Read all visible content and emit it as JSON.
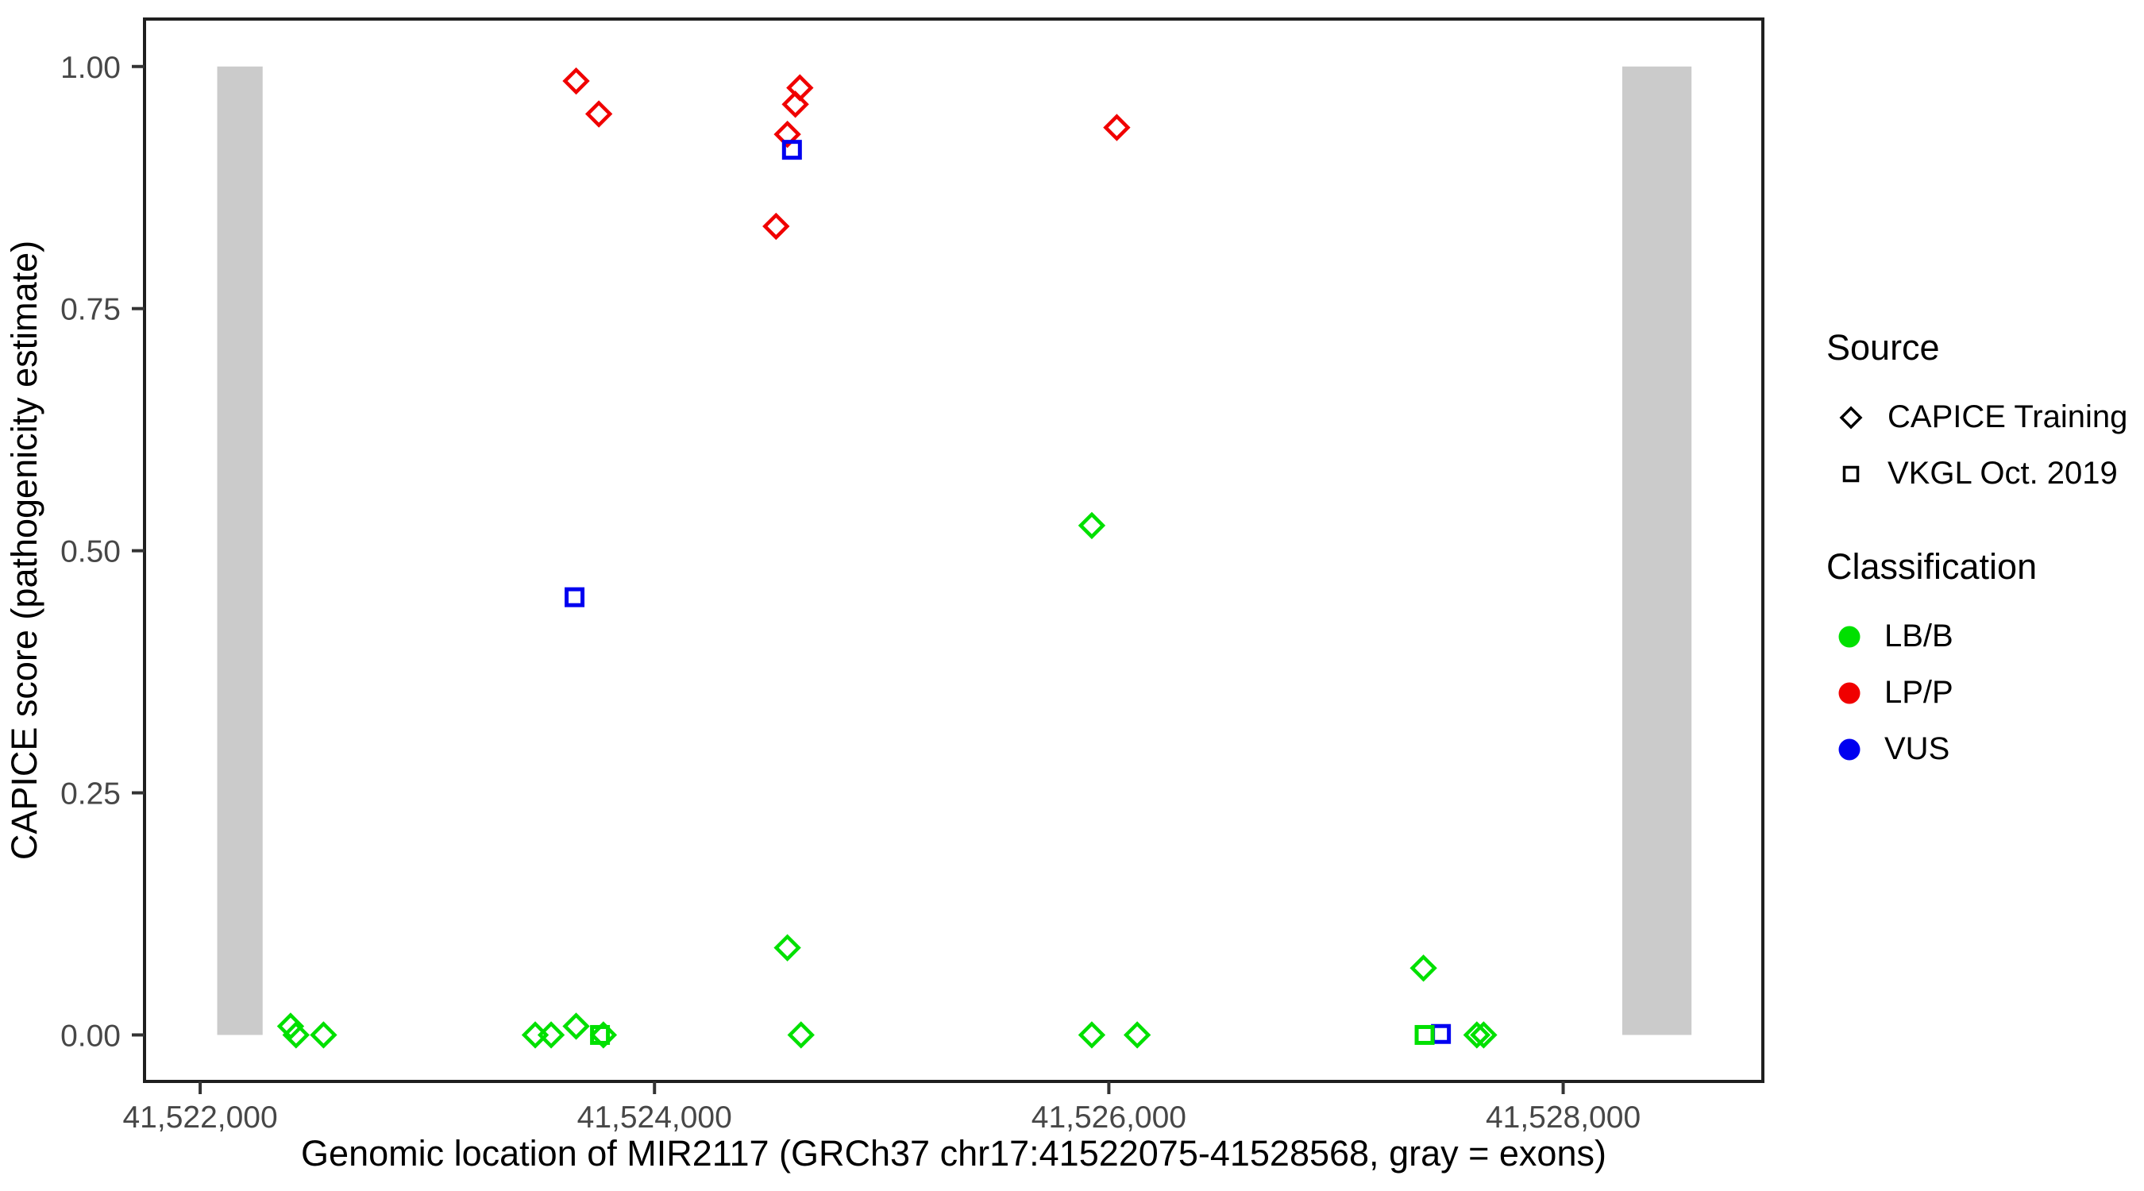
{
  "chart_data": {
    "type": "scatter",
    "title": "",
    "xlabel": "Genomic location of MIR2117 (GRCh37 chr17:41522075-41528568, gray = exons)",
    "ylabel": "CAPICE score (pathogenicity estimate)",
    "x_ticks": [
      41522000,
      41524000,
      41526000,
      41528000
    ],
    "x_tick_labels": [
      "41,522,000",
      "41,524,000",
      "41,526,000",
      "41,528,000"
    ],
    "y_ticks": [
      0,
      0.25,
      0.5,
      0.75,
      1
    ],
    "y_tick_labels": [
      "0.00",
      "0.25",
      "0.50",
      "0.75",
      "1.00"
    ],
    "xlim": [
      41521755,
      41528879
    ],
    "ylim": [
      -0.048,
      1.049
    ],
    "grid": false,
    "exon_color": "#CBCBCB",
    "exons": [
      {
        "start": 41522075,
        "end": 41522275
      },
      {
        "start": 41528260,
        "end": 41528565
      }
    ],
    "series": [
      {
        "name": "CAPICE Training / LP/P",
        "source": "CAPICE Training",
        "classification": "LP/P",
        "marker": "diamond",
        "color": "#F00000",
        "points": [
          [
            41523655,
            0.985
          ],
          [
            41523755,
            0.951
          ],
          [
            41524640,
            0.978
          ],
          [
            41524620,
            0.961
          ],
          [
            41524585,
            0.93
          ],
          [
            41524535,
            0.835
          ],
          [
            41526035,
            0.937
          ]
        ]
      },
      {
        "name": "CAPICE Training / LB/B",
        "source": "CAPICE Training",
        "classification": "LB/B",
        "marker": "diamond",
        "color": "#00E000",
        "points": [
          [
            41522398,
            0.009
          ],
          [
            41522422,
            0.0
          ],
          [
            41522543,
            0.0
          ],
          [
            41523475,
            0.0
          ],
          [
            41523545,
            0.0
          ],
          [
            41523655,
            0.009
          ],
          [
            41523775,
            0.0
          ],
          [
            41524585,
            0.09
          ],
          [
            41524645,
            0.0
          ],
          [
            41525925,
            0.526
          ],
          [
            41525925,
            0.0
          ],
          [
            41526125,
            0.0
          ],
          [
            41527385,
            0.069
          ],
          [
            41527620,
            0.0
          ],
          [
            41527650,
            0.0
          ]
        ]
      },
      {
        "name": "VKGL Oct. 2019 / VUS",
        "source": "VKGL Oct. 2019",
        "classification": "VUS",
        "marker": "square",
        "color": "#0000F0",
        "points": [
          [
            41523648,
            0.452
          ],
          [
            41524605,
            0.914
          ],
          [
            41527462,
            0.001
          ]
        ]
      },
      {
        "name": "VKGL Oct. 2019 / LB/B",
        "source": "VKGL Oct. 2019",
        "classification": "LB/B",
        "marker": "square",
        "color": "#00E000",
        "points": [
          [
            41523760,
            0.0
          ],
          [
            41527390,
            0.0
          ]
        ]
      }
    ]
  },
  "legend": {
    "source": {
      "title": "Source",
      "items": [
        {
          "label": "CAPICE Training",
          "marker": "diamond"
        },
        {
          "label": "VKGL Oct. 2019",
          "marker": "square"
        }
      ]
    },
    "classification": {
      "title": "Classification",
      "items": [
        {
          "label": "LB/B",
          "color": "#00E000"
        },
        {
          "label": "LP/P",
          "color": "#F00000"
        },
        {
          "label": "VUS",
          "color": "#0000F0"
        }
      ]
    }
  }
}
